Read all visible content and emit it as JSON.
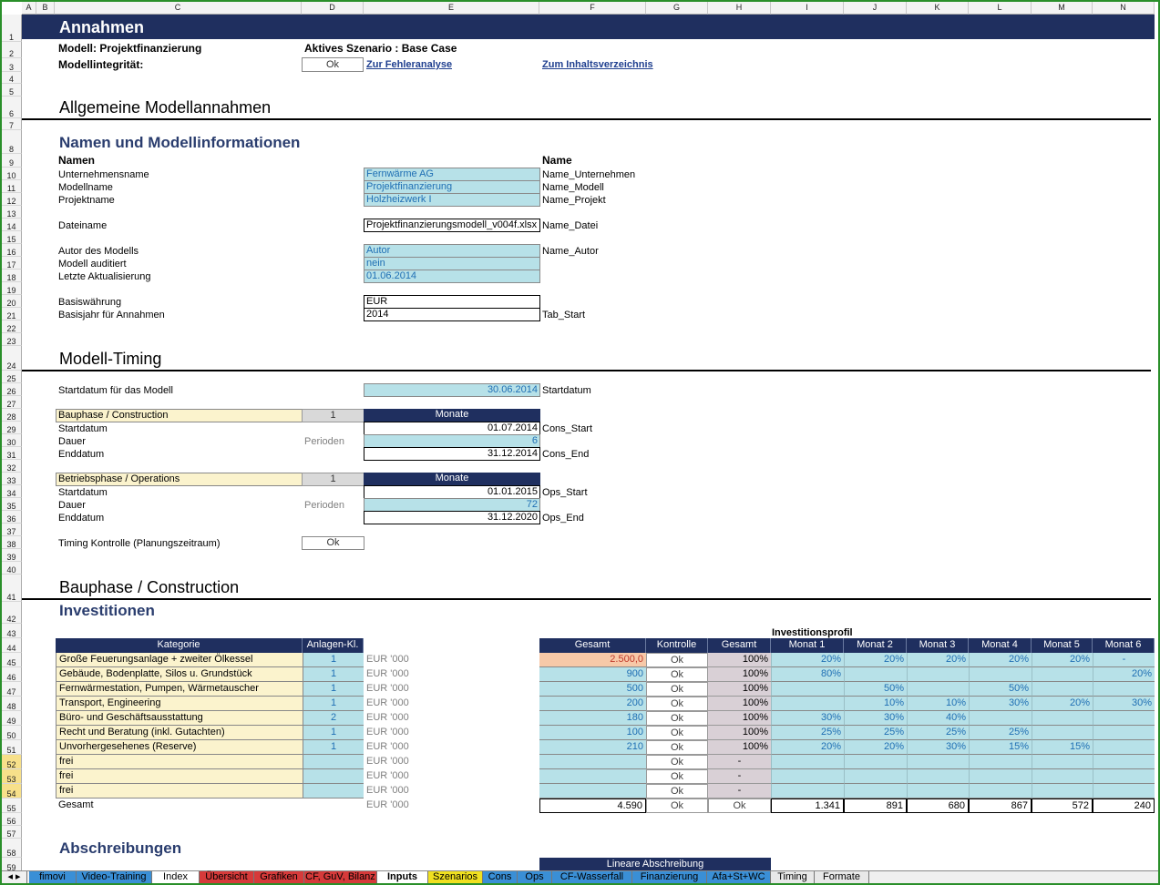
{
  "columns": [
    "A",
    "B",
    "C",
    "D",
    "E",
    "F",
    "G",
    "H",
    "I",
    "J",
    "K",
    "L",
    "M",
    "N"
  ],
  "rows": [
    "1",
    "2",
    "3",
    "4",
    "5",
    "6",
    "7",
    "8",
    "9",
    "10",
    "11",
    "12",
    "13",
    "14",
    "15",
    "16",
    "17",
    "18",
    "19",
    "20",
    "21",
    "22",
    "23",
    "24",
    "25",
    "26",
    "27",
    "28",
    "29",
    "30",
    "31",
    "32",
    "33",
    "34",
    "35",
    "36",
    "37",
    "38",
    "39",
    "40",
    "41",
    "42",
    "43",
    "44",
    "45",
    "46",
    "47",
    "48",
    "49",
    "50",
    "51",
    "52",
    "53",
    "54",
    "55",
    "56",
    "57",
    "58",
    "59"
  ],
  "banner": {
    "title": "Annahmen"
  },
  "header": {
    "model_label": "Modell: Projektfinanzierung",
    "scenario": "Aktives Szenario : Base Case",
    "integrity_label": "Modellintegrität:",
    "integrity_value": "Ok",
    "link_errors": "Zur Fehleranalyse",
    "link_toc": "Zum Inhaltsverzeichnis"
  },
  "sec_general": "Allgemeine Modellannahmen",
  "sec_names": "Namen und Modellinformationen",
  "names": {
    "col_names": "Namen",
    "col_name": "Name",
    "company_label": "Unternehmensname",
    "company_value": "Fernwärme AG",
    "company_name": "Name_Unternehmen",
    "model_label": "Modellname",
    "model_value": "Projektfinanzierung",
    "model_name": "Name_Modell",
    "project_label": "Projektname",
    "project_value": "Holzheizwerk I",
    "project_name": "Name_Projekt",
    "file_label": "Dateiname",
    "file_value": "Projektfinanzierungsmodell_v004f.xlsx",
    "file_name": "Name_Datei",
    "author_label": "Autor des Modells",
    "author_value": "Autor",
    "author_name": "Name_Autor",
    "audited_label": "Modell auditiert",
    "audited_value": "nein",
    "updated_label": "Letzte Aktualisierung",
    "updated_value": "01.06.2014",
    "currency_label": "Basiswährung",
    "currency_value": "EUR",
    "baseyear_label": "Basisjahr für Annahmen",
    "baseyear_value": "2014",
    "baseyear_name": "Tab_Start"
  },
  "sec_timing": "Modell-Timing",
  "timing": {
    "start_label": "Startdatum für das Modell",
    "start_value": "30.06.2014",
    "start_name": "Startdatum",
    "cons_title": "Bauphase / Construction",
    "cons_flag": "1",
    "cons_unit": "Monate",
    "cons_start_label": "Startdatum",
    "cons_start_value": "01.07.2014",
    "cons_start_name": "Cons_Start",
    "cons_dur_label": "Dauer",
    "cons_dur_unit": "Perioden",
    "cons_dur_value": "6",
    "cons_end_label": "Enddatum",
    "cons_end_value": "31.12.2014",
    "cons_end_name": "Cons_End",
    "ops_title": "Betriebsphase / Operations",
    "ops_flag": "1",
    "ops_unit": "Monate",
    "ops_start_label": "Startdatum",
    "ops_start_value": "01.01.2015",
    "ops_start_name": "Ops_Start",
    "ops_dur_label": "Dauer",
    "ops_dur_unit": "Perioden",
    "ops_dur_value": "72",
    "ops_end_label": "Enddatum",
    "ops_end_value": "31.12.2020",
    "ops_end_name": "Ops_End",
    "check_label": "Timing Kontrolle (Planungszeitraum)",
    "check_value": "Ok"
  },
  "sec_construction": "Bauphase / Construction",
  "sec_invest": "Investitionen",
  "invest": {
    "profile_title": "Investitionsprofil",
    "headers": [
      "Kategorie",
      "Anlagen-Kl.",
      "Gesamt",
      "Kontrolle",
      "Gesamt",
      "Monat 1",
      "Monat 2",
      "Monat 3",
      "Monat 4",
      "Monat 5",
      "Monat 6"
    ],
    "rows": [
      {
        "cat": "Große Feuerungsanlage + zweiter Ölkessel",
        "cls": "1",
        "unit": "EUR '000",
        "total": "2.500,0",
        "chk": "Ok",
        "pct": "100%",
        "m": [
          "20%",
          "20%",
          "20%",
          "20%",
          "20%",
          "-"
        ]
      },
      {
        "cat": "Gebäude, Bodenplatte, Silos u. Grundstück",
        "cls": "1",
        "unit": "EUR '000",
        "total": "900",
        "chk": "Ok",
        "pct": "100%",
        "m": [
          "80%",
          "",
          "",
          "",
          "",
          "20%"
        ]
      },
      {
        "cat": "Fernwärmestation, Pumpen, Wärmetauscher",
        "cls": "1",
        "unit": "EUR '000",
        "total": "500",
        "chk": "Ok",
        "pct": "100%",
        "m": [
          "",
          "50%",
          "",
          "50%",
          "",
          ""
        ]
      },
      {
        "cat": "Transport, Engineering",
        "cls": "1",
        "unit": "EUR '000",
        "total": "200",
        "chk": "Ok",
        "pct": "100%",
        "m": [
          "",
          "10%",
          "10%",
          "30%",
          "20%",
          "30%"
        ]
      },
      {
        "cat": "Büro- und Geschäftsausstattung",
        "cls": "2",
        "unit": "EUR '000",
        "total": "180",
        "chk": "Ok",
        "pct": "100%",
        "m": [
          "30%",
          "30%",
          "40%",
          "",
          "",
          ""
        ]
      },
      {
        "cat": "Recht und Beratung (inkl. Gutachten)",
        "cls": "1",
        "unit": "EUR '000",
        "total": "100",
        "chk": "Ok",
        "pct": "100%",
        "m": [
          "25%",
          "25%",
          "25%",
          "25%",
          "",
          ""
        ]
      },
      {
        "cat": "Unvorhergesehenes (Reserve)",
        "cls": "1",
        "unit": "EUR '000",
        "total": "210",
        "chk": "Ok",
        "pct": "100%",
        "m": [
          "20%",
          "20%",
          "30%",
          "15%",
          "15%",
          ""
        ]
      },
      {
        "cat": "frei",
        "cls": "",
        "unit": "EUR '000",
        "total": "",
        "chk": "Ok",
        "pct": "-",
        "m": [
          "",
          "",
          "",
          "",
          "",
          ""
        ]
      },
      {
        "cat": "frei",
        "cls": "",
        "unit": "EUR '000",
        "total": "",
        "chk": "Ok",
        "pct": "-",
        "m": [
          "",
          "",
          "",
          "",
          "",
          ""
        ]
      },
      {
        "cat": "frei",
        "cls": "",
        "unit": "EUR '000",
        "total": "",
        "chk": "Ok",
        "pct": "-",
        "m": [
          "",
          "",
          "",
          "",
          "",
          ""
        ]
      }
    ],
    "sum": {
      "cat": "Gesamt",
      "unit": "EUR '000",
      "total": "4.590",
      "chk": "Ok",
      "pct": "Ok",
      "m": [
        "1.341",
        "891",
        "680",
        "867",
        "572",
        "240"
      ]
    }
  },
  "sec_depr": "Abschreibungen",
  "depr_header": "Lineare Abschreibung",
  "tabs": [
    "fimovi",
    "Video-Training",
    "Index",
    "Übersicht",
    "Grafiken",
    "CF, GuV, Bilanz",
    "Inputs",
    "Szenarios",
    "Cons",
    "Ops",
    "CF-Wasserfall",
    "Finanzierung",
    "Afa+St+WC",
    "Timing",
    "Formate"
  ],
  "colors": {
    "navy": "#1f2f5f",
    "input": "#b7e1e8",
    "tan": "#fbf3cd",
    "heading": "#2a3d6e"
  }
}
